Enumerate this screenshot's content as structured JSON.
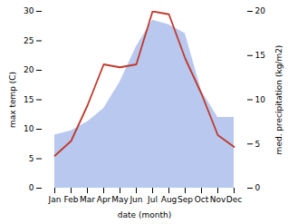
{
  "chart_data": {
    "type": "line",
    "categories": [
      "Jan",
      "Feb",
      "Mar",
      "Apr",
      "May",
      "Jun",
      "Jul",
      "Aug",
      "Sep",
      "Oct",
      "Nov",
      "Dec"
    ],
    "series": [
      {
        "type": "area",
        "axis": "y2",
        "color": "#b8c8ee",
        "values": [
          6.0,
          6.5,
          7.5,
          9.0,
          12.0,
          16.0,
          19.0,
          18.5,
          17.5,
          11.0,
          8.0,
          8.0
        ]
      },
      {
        "type": "line",
        "color": "#c0392b",
        "values": [
          5.5,
          8.0,
          14.0,
          21.0,
          20.5,
          21.0,
          30.0,
          29.5,
          22.0,
          16.0,
          9.0,
          7.0
        ]
      }
    ],
    "xlabel": "date (month)",
    "ylabel": "max temp (C)",
    "y2label": "med. precipitation (kg/m2)",
    "ylim": [
      0,
      30
    ],
    "yticks": [
      0,
      5,
      10,
      15,
      20,
      25,
      30
    ],
    "y2lim": [
      0,
      20
    ],
    "y2ticks": [
      0,
      5,
      10,
      15,
      20
    ]
  }
}
